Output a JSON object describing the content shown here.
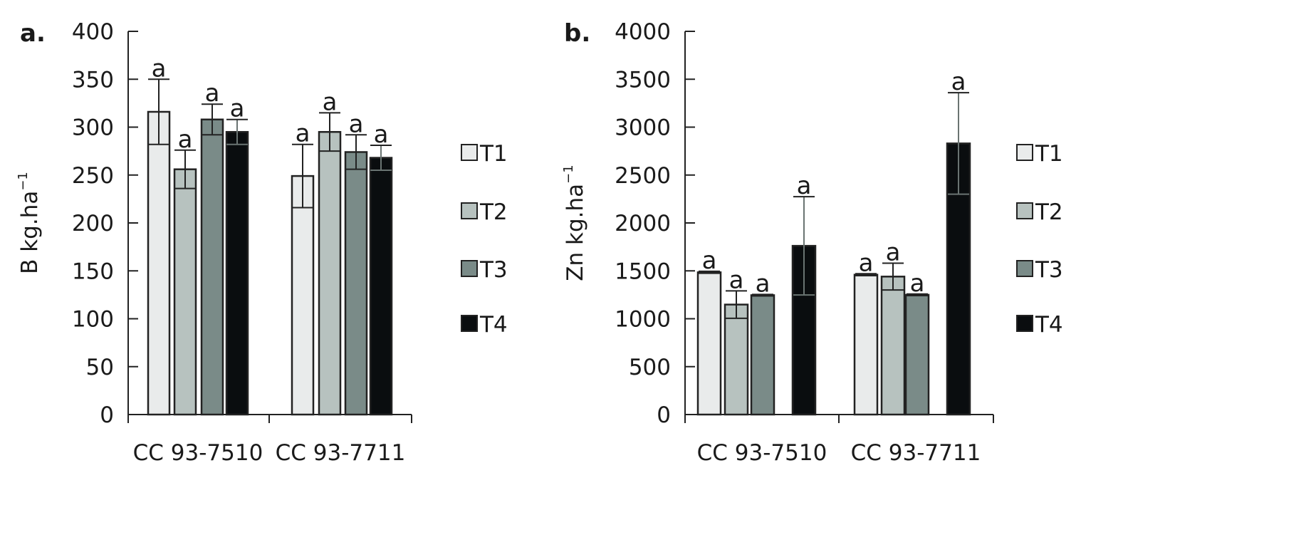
{
  "legend": [
    "T1",
    "T2",
    "T3",
    "T4"
  ],
  "colors": {
    "T1": "#e9ebeb",
    "T2": "#b7c2bf",
    "T3": "#7a8b88",
    "T4": "#0a0d0f",
    "outline": "#222222"
  },
  "chart_data": [
    {
      "type": "bar",
      "panel_label": "a.",
      "ylabel": "B kg.ha",
      "ylabel_sup": "−1",
      "ylim": [
        0,
        400
      ],
      "yticks": [
        0,
        50,
        100,
        150,
        200,
        250,
        300,
        350,
        400
      ],
      "categories": [
        "CC 93-7510",
        "CC 93-7711"
      ],
      "legend_position": "right",
      "series": [
        {
          "name": "T1",
          "values": [
            316,
            249
          ],
          "errors": [
            34,
            33
          ],
          "letters": [
            "a",
            "a"
          ]
        },
        {
          "name": "T2",
          "values": [
            256,
            295
          ],
          "errors": [
            20,
            20
          ],
          "letters": [
            "a",
            "a"
          ]
        },
        {
          "name": "T3",
          "values": [
            308,
            274
          ],
          "errors": [
            16,
            18
          ],
          "letters": [
            "a",
            "a"
          ]
        },
        {
          "name": "T4",
          "values": [
            295,
            268
          ],
          "errors": [
            13,
            13
          ],
          "letters": [
            "a",
            "a"
          ]
        }
      ]
    },
    {
      "type": "bar",
      "panel_label": "b.",
      "ylabel": "Zn kg.ha",
      "ylabel_sup": "−1",
      "ylim": [
        0,
        4000
      ],
      "yticks": [
        0,
        500,
        1000,
        1500,
        2000,
        2500,
        3000,
        3500,
        4000
      ],
      "categories": [
        "CC 93-7510",
        "CC 93-7711"
      ],
      "legend_position": "right",
      "series": [
        {
          "name": "T1",
          "values": [
            1485,
            1460
          ],
          "errors": [
            10,
            10
          ],
          "letters": [
            "a",
            "a"
          ]
        },
        {
          "name": "T2",
          "values": [
            1148,
            1440
          ],
          "errors": [
            143,
            140
          ],
          "letters": [
            "a",
            "a"
          ]
        },
        {
          "name": "T3",
          "values": [
            1246,
            1250
          ],
          "errors": [
            8,
            8
          ],
          "letters": [
            "a",
            "a"
          ]
        },
        {
          "name": "T4",
          "values": [
            1761,
            2830
          ],
          "errors": [
            513,
            530
          ],
          "letters": [
            "a",
            "a"
          ]
        }
      ]
    }
  ]
}
